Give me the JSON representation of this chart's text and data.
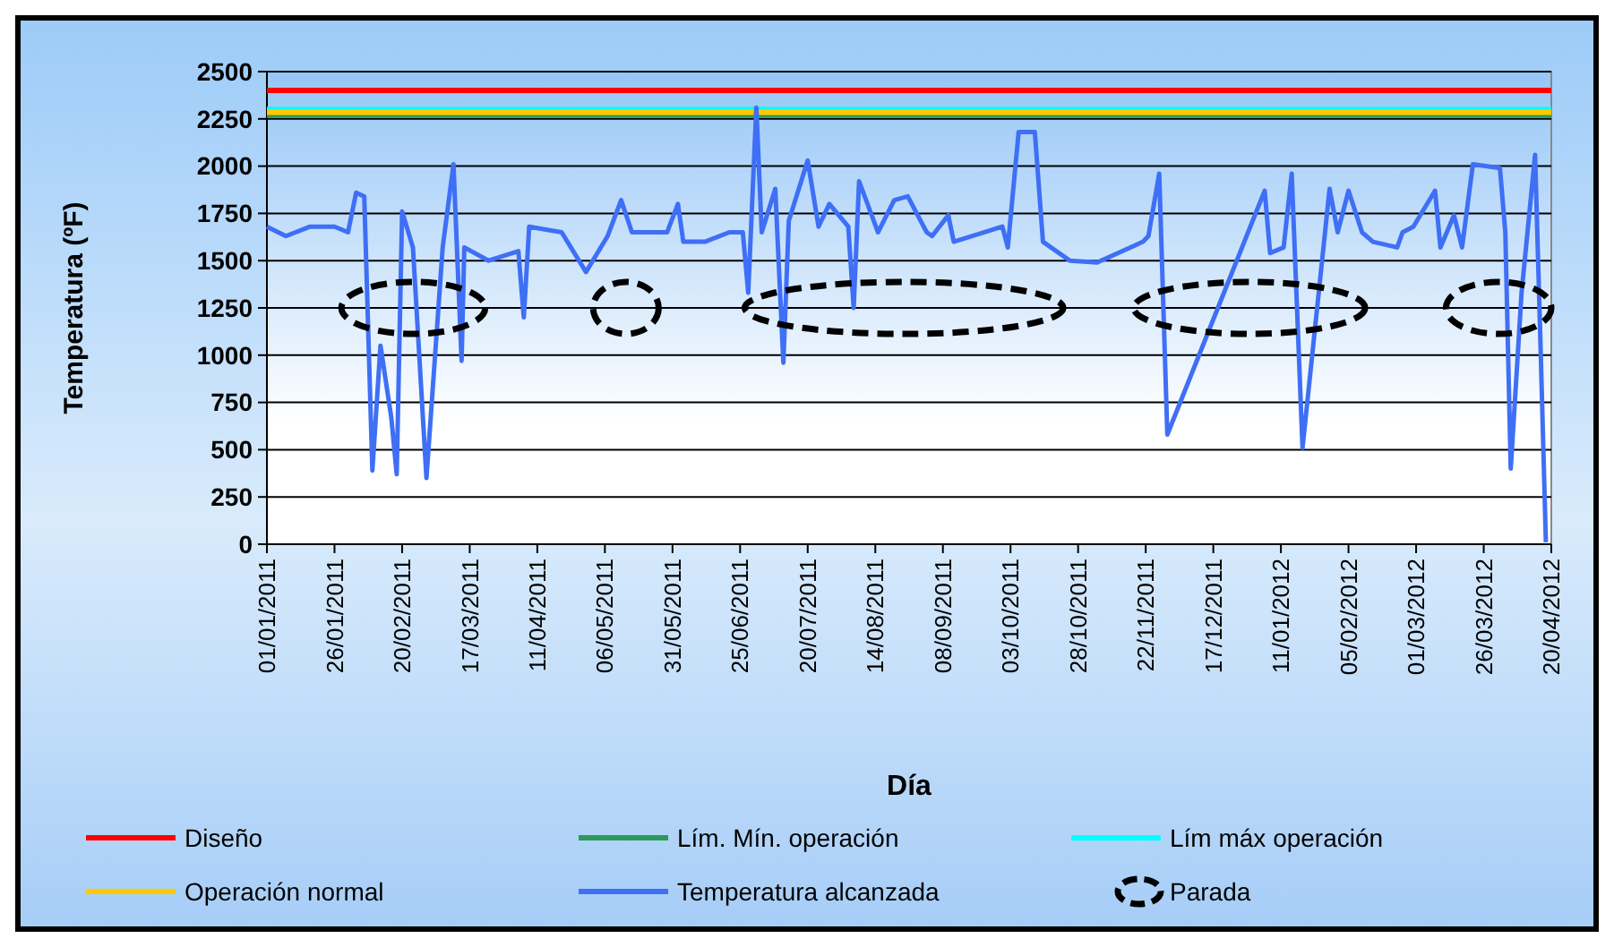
{
  "chart_data": {
    "type": "line",
    "xlabel": "Día",
    "ylabel": "Temperatura  (ºF)",
    "ylim": [
      0,
      2500
    ],
    "yticks": [
      0,
      250,
      500,
      750,
      1000,
      1250,
      1500,
      1750,
      2000,
      2250,
      2500
    ],
    "xlim": [
      "2011-01-01",
      "2012-04-20"
    ],
    "xticks": [
      {
        "value": "2011-01-01",
        "label": "01/01/2011"
      },
      {
        "value": "2011-01-26",
        "label": "26/01/2011"
      },
      {
        "value": "2011-02-20",
        "label": "20/02/2011"
      },
      {
        "value": "2011-03-17",
        "label": "17/03/2011"
      },
      {
        "value": "2011-04-11",
        "label": "11/04/2011"
      },
      {
        "value": "2011-05-06",
        "label": "06/05/2011"
      },
      {
        "value": "2011-05-31",
        "label": "31/05/2011"
      },
      {
        "value": "2011-06-25",
        "label": "25/06/2011"
      },
      {
        "value": "2011-07-20",
        "label": "20/07/2011"
      },
      {
        "value": "2011-08-14",
        "label": "14/08/2011"
      },
      {
        "value": "2011-09-08",
        "label": "08/09/2011"
      },
      {
        "value": "2011-10-03",
        "label": "03/10/2011"
      },
      {
        "value": "2011-10-28",
        "label": "28/10/2011"
      },
      {
        "value": "2011-11-22",
        "label": "22/11/2011"
      },
      {
        "value": "2011-12-17",
        "label": "17/12/2011"
      },
      {
        "value": "2012-01-11",
        "label": "11/01/2012"
      },
      {
        "value": "2012-02-05",
        "label": "05/02/2012"
      },
      {
        "value": "2012-03-01",
        "label": "01/03/2012"
      },
      {
        "value": "2012-03-26",
        "label": "26/03/2012"
      },
      {
        "value": "2012-04-20",
        "label": "20/04/2012"
      }
    ],
    "grid": "y",
    "legend": "bottom",
    "marker": "none",
    "line_style": "solid",
    "x": [
      "2011-01-01",
      "2011-01-08",
      "2011-01-17",
      "2011-01-26",
      "2011-01-31",
      "2011-02-03",
      "2011-02-06",
      "2011-02-09",
      "2011-02-12",
      "2011-02-16",
      "2011-02-18",
      "2011-02-20",
      "2011-02-24",
      "2011-03-01",
      "2011-03-07",
      "2011-03-11",
      "2011-03-14",
      "2011-03-15",
      "2011-03-24",
      "2011-04-04",
      "2011-04-06",
      "2011-04-08",
      "2011-04-20",
      "2011-04-29",
      "2011-05-07",
      "2011-05-12",
      "2011-05-16",
      "2011-05-29",
      "2011-06-02",
      "2011-06-04",
      "2011-06-12",
      "2011-06-21",
      "2011-06-26",
      "2011-06-28",
      "2011-07-01",
      "2011-07-03",
      "2011-07-08",
      "2011-07-11",
      "2011-07-13",
      "2011-07-20",
      "2011-07-24",
      "2011-07-28",
      "2011-08-04",
      "2011-08-06",
      "2011-08-08",
      "2011-08-15",
      "2011-08-21",
      "2011-08-26",
      "2011-09-02",
      "2011-09-04",
      "2011-09-10",
      "2011-09-12",
      "2011-09-30",
      "2011-10-02",
      "2011-10-06",
      "2011-10-12",
      "2011-10-15",
      "2011-10-25",
      "2011-11-04",
      "2011-11-21",
      "2011-11-23",
      "2011-11-27",
      "2011-11-30",
      "2012-01-05",
      "2012-01-07",
      "2012-01-12",
      "2012-01-15",
      "2012-01-19",
      "2012-01-29",
      "2012-02-01",
      "2012-02-05",
      "2012-02-10",
      "2012-02-14",
      "2012-02-23",
      "2012-02-25",
      "2012-02-29",
      "2012-03-08",
      "2012-03-10",
      "2012-03-15",
      "2012-03-18",
      "2012-03-22",
      "2012-04-01",
      "2012-04-03",
      "2012-04-05",
      "2012-04-09",
      "2012-04-14",
      "2012-04-16",
      "2012-04-18"
    ],
    "series": [
      {
        "name": "Temperatura alcanzada",
        "color": "#3f6ff5",
        "values": [
          1680,
          1630,
          1680,
          1680,
          1650,
          1860,
          1840,
          390,
          1050,
          670,
          370,
          1760,
          1570,
          350,
          1570,
          2010,
          970,
          1570,
          1500,
          1550,
          1200,
          1680,
          1650,
          1440,
          1630,
          1820,
          1650,
          1650,
          1800,
          1600,
          1600,
          1650,
          1650,
          1330,
          2310,
          1650,
          1880,
          960,
          1710,
          2030,
          1680,
          1800,
          1680,
          1250,
          1920,
          1650,
          1820,
          1840,
          1650,
          1630,
          1740,
          1600,
          1680,
          1570,
          2180,
          2180,
          1600,
          1500,
          1490,
          1600,
          1630,
          1960,
          580,
          1870,
          1540,
          1570,
          1960,
          510,
          1880,
          1650,
          1870,
          1650,
          1600,
          1570,
          1650,
          1680,
          1870,
          1570,
          1740,
          1570,
          2010,
          1990,
          1650,
          400,
          1330,
          2060,
          1060,
          10
        ]
      }
    ],
    "ref_lines": [
      {
        "axis": "y",
        "value": 2400,
        "label": "Diseño",
        "color": "#ff0000"
      },
      {
        "axis": "y",
        "value": 2270,
        "label": "Lím. Mín. operación",
        "color": "#2e9a5a"
      },
      {
        "axis": "y",
        "value": 2300,
        "label": "Lím máx operación",
        "color": "#00ffff"
      },
      {
        "axis": "y",
        "value": 2285,
        "label": "Operación normal",
        "color": "#ffc800"
      }
    ],
    "annotations": [
      "Parada"
    ]
  }
}
